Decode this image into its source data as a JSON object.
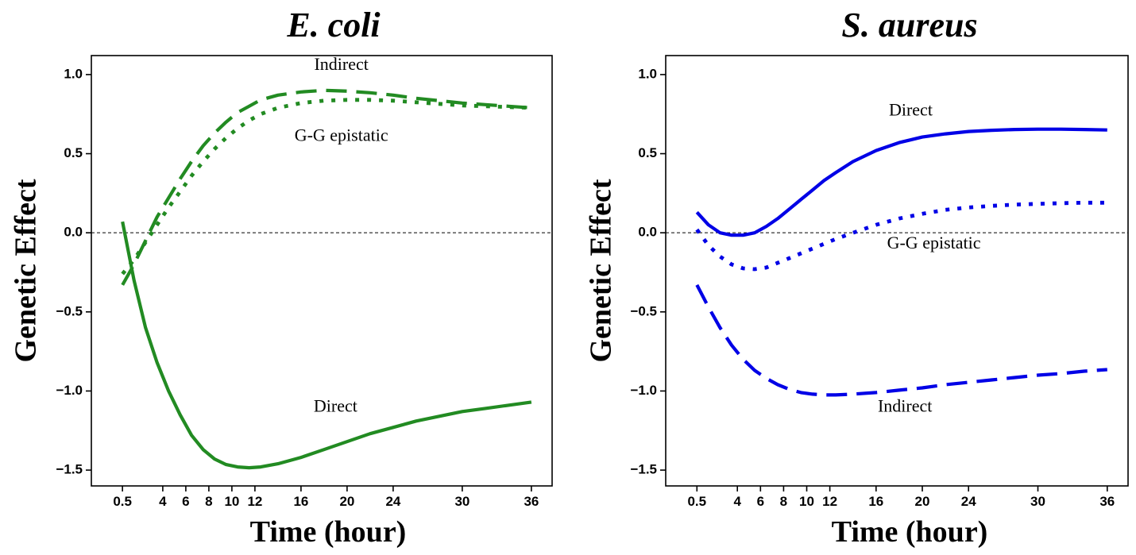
{
  "chart_data": [
    {
      "type": "line",
      "title": "E. coli",
      "xlabel": "Time (hour)",
      "ylabel": "Genetic Effect",
      "ylim": [
        -1.6,
        1.12
      ],
      "xlim": [
        -2.2,
        37.8
      ],
      "x_ticks": [
        0.5,
        4,
        6,
        8,
        10,
        12,
        16,
        20,
        24,
        30,
        36
      ],
      "y_ticks": [
        1.0,
        0.5,
        0.0,
        -0.5,
        -1.0,
        -1.5
      ],
      "x_tick_labels": [
        "0.5",
        "4",
        "6",
        "8",
        "10",
        "12",
        "16",
        "20",
        "24",
        "30",
        "36"
      ],
      "y_tick_labels": [
        "1.0",
        "0.5",
        "0.0",
        "−0.5",
        "−1.0",
        "−1.5"
      ],
      "color": "#228B22",
      "series": [
        {
          "name": "Direct",
          "style": "solid",
          "x": [
            0.5,
            1.5,
            2.5,
            3.5,
            4.5,
            5.5,
            6.5,
            7.5,
            8.5,
            9.5,
            10.5,
            11.5,
            12.5,
            14,
            16,
            18,
            20,
            22,
            24,
            26,
            28,
            30,
            32,
            34,
            36
          ],
          "y": [
            0.07,
            -0.3,
            -0.6,
            -0.82,
            -1.0,
            -1.15,
            -1.28,
            -1.37,
            -1.43,
            -1.465,
            -1.48,
            -1.485,
            -1.48,
            -1.46,
            -1.42,
            -1.37,
            -1.32,
            -1.27,
            -1.23,
            -1.19,
            -1.16,
            -1.13,
            -1.11,
            -1.09,
            -1.07
          ]
        },
        {
          "name": "Indirect",
          "style": "dashed",
          "x": [
            0.5,
            1.5,
            2.5,
            3.5,
            4.5,
            5.5,
            6.5,
            7.5,
            8.5,
            9.5,
            10.5,
            11.5,
            12.5,
            14,
            16,
            18,
            20,
            22,
            24,
            26,
            28,
            30,
            32,
            34,
            36
          ],
          "y": [
            -0.33,
            -0.2,
            -0.05,
            0.1,
            0.22,
            0.34,
            0.45,
            0.55,
            0.63,
            0.7,
            0.76,
            0.8,
            0.84,
            0.87,
            0.89,
            0.9,
            0.895,
            0.885,
            0.87,
            0.85,
            0.835,
            0.82,
            0.81,
            0.8,
            0.79
          ]
        },
        {
          "name": "G-G epistatic",
          "style": "dotted",
          "x": [
            0.5,
            1.5,
            2.5,
            3.5,
            4.5,
            5.5,
            6.5,
            7.5,
            8.5,
            9.5,
            10.5,
            11.5,
            12.5,
            14,
            16,
            18,
            20,
            22,
            24,
            26,
            28,
            30,
            32,
            34,
            36
          ],
          "y": [
            -0.26,
            -0.17,
            -0.06,
            0.05,
            0.16,
            0.26,
            0.36,
            0.45,
            0.53,
            0.6,
            0.66,
            0.71,
            0.75,
            0.79,
            0.82,
            0.835,
            0.84,
            0.84,
            0.835,
            0.825,
            0.815,
            0.805,
            0.8,
            0.795,
            0.79
          ]
        }
      ],
      "annotations": [
        {
          "text": "Indirect",
          "x": 19.5,
          "y": 1.03
        },
        {
          "text": "G-G epistatic",
          "x": 19.5,
          "y": 0.58
        },
        {
          "text": "Direct",
          "x": 19.0,
          "y": -1.13
        }
      ]
    },
    {
      "type": "line",
      "title": "S. aureus",
      "xlabel": "Time (hour)",
      "ylabel": "Genetic Effect",
      "ylim": [
        -1.6,
        1.12
      ],
      "xlim": [
        -2.2,
        37.8
      ],
      "x_ticks": [
        0.5,
        4,
        6,
        8,
        10,
        12,
        16,
        20,
        24,
        30,
        36
      ],
      "y_ticks": [
        1.0,
        0.5,
        0.0,
        -0.5,
        -1.0,
        -1.5
      ],
      "x_tick_labels": [
        "0.5",
        "4",
        "6",
        "8",
        "10",
        "12",
        "16",
        "20",
        "24",
        "30",
        "36"
      ],
      "y_tick_labels": [
        "1.0",
        "0.5",
        "0.0",
        "−0.5",
        "−1.0",
        "−1.5"
      ],
      "color": "#0000E6",
      "series": [
        {
          "name": "Direct",
          "style": "solid",
          "x": [
            0.5,
            1.5,
            2.5,
            3.5,
            4.5,
            5.5,
            6.5,
            7.5,
            8.5,
            9.5,
            10.5,
            11.5,
            12.5,
            14,
            16,
            18,
            20,
            22,
            24,
            26,
            28,
            30,
            32,
            34,
            36
          ],
          "y": [
            0.13,
            0.05,
            0.0,
            -0.015,
            -0.015,
            0.0,
            0.04,
            0.09,
            0.15,
            0.21,
            0.27,
            0.33,
            0.38,
            0.45,
            0.52,
            0.57,
            0.605,
            0.625,
            0.64,
            0.648,
            0.653,
            0.655,
            0.655,
            0.653,
            0.65
          ]
        },
        {
          "name": "Indirect",
          "style": "dashed",
          "x": [
            0.5,
            1.5,
            2.5,
            3.5,
            4.5,
            5.5,
            6.5,
            7.5,
            8.5,
            9.5,
            10.5,
            11.5,
            12.5,
            14,
            16,
            18,
            20,
            22,
            24,
            26,
            28,
            30,
            32,
            34,
            36
          ],
          "y": [
            -0.33,
            -0.47,
            -0.6,
            -0.71,
            -0.8,
            -0.87,
            -0.92,
            -0.96,
            -0.99,
            -1.01,
            -1.02,
            -1.025,
            -1.025,
            -1.02,
            -1.01,
            -0.995,
            -0.98,
            -0.96,
            -0.945,
            -0.93,
            -0.915,
            -0.9,
            -0.89,
            -0.875,
            -0.865
          ]
        },
        {
          "name": "G-G epistatic",
          "style": "dotted",
          "x": [
            0.5,
            1.5,
            2.5,
            3.5,
            4.5,
            5.5,
            6.5,
            7.5,
            8.5,
            9.5,
            10.5,
            11.5,
            12.5,
            14,
            16,
            18,
            20,
            22,
            24,
            26,
            28,
            30,
            32,
            34,
            36
          ],
          "y": [
            0.02,
            -0.08,
            -0.15,
            -0.2,
            -0.225,
            -0.23,
            -0.22,
            -0.19,
            -0.16,
            -0.13,
            -0.1,
            -0.07,
            -0.04,
            0.0,
            0.05,
            0.09,
            0.12,
            0.145,
            0.16,
            0.17,
            0.178,
            0.183,
            0.187,
            0.19,
            0.19
          ]
        }
      ],
      "annotations": [
        {
          "text": "Direct",
          "x": 19.0,
          "y": 0.74
        },
        {
          "text": "G-G epistatic",
          "x": 21.0,
          "y": -0.1
        },
        {
          "text": "Indirect",
          "x": 18.5,
          "y": -1.13
        }
      ]
    }
  ]
}
